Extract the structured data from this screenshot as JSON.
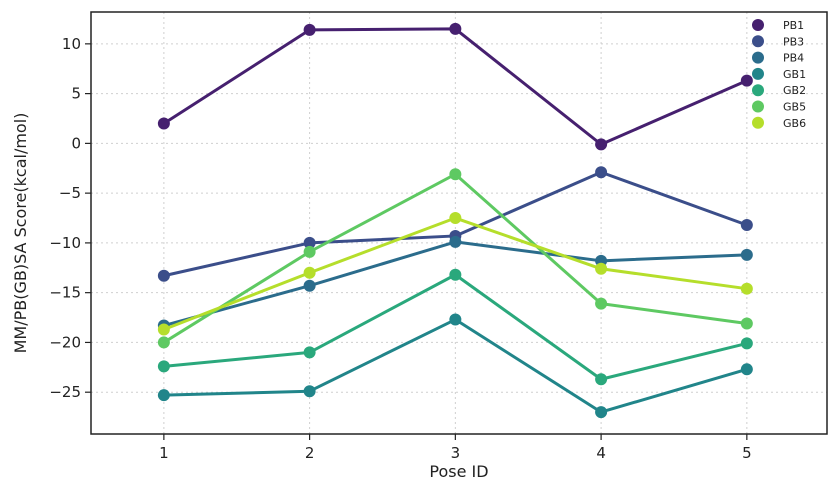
{
  "chart_data": {
    "type": "line",
    "xlabel": "Pose ID",
    "ylabel": "MM/PB(GB)SA Score(kcal/mol)",
    "x": [
      1,
      2,
      3,
      4,
      5
    ],
    "xlim": [
      0.5,
      5.55
    ],
    "ylim": [
      -29.2,
      13.2
    ],
    "yticks": [
      10,
      5,
      0,
      -5,
      -10,
      -15,
      -20,
      -25
    ],
    "ytick_labels": [
      "10",
      "5",
      "0",
      "−5",
      "−10",
      "−15",
      "−20",
      "−25"
    ],
    "xtick_labels": [
      "1",
      "2",
      "3",
      "4",
      "5"
    ],
    "grid": true,
    "legend_position": "top-right",
    "series": [
      {
        "name": "PB1",
        "color": "#46206f",
        "values": [
          2.0,
          11.4,
          11.5,
          -0.1,
          6.3
        ]
      },
      {
        "name": "PB3",
        "color": "#3b4e8a",
        "values": [
          -13.3,
          -10.0,
          -9.3,
          -2.9,
          -8.2
        ]
      },
      {
        "name": "PB4",
        "color": "#2b6c8c",
        "values": [
          -18.3,
          -14.3,
          -9.9,
          -11.8,
          -11.2
        ]
      },
      {
        "name": "GB1",
        "color": "#21858a",
        "values": [
          -25.3,
          -24.9,
          -17.7,
          -27.0,
          -22.7
        ]
      },
      {
        "name": "GB2",
        "color": "#2aa87c",
        "values": [
          -22.4,
          -21.0,
          -13.2,
          -23.7,
          -20.1
        ]
      },
      {
        "name": "GB5",
        "color": "#5ec962",
        "values": [
          -20.0,
          -10.9,
          -3.1,
          -16.1,
          -18.1
        ]
      },
      {
        "name": "GB6",
        "color": "#b5de2b",
        "values": [
          -18.7,
          -13.0,
          -7.5,
          -12.6,
          -14.6
        ]
      }
    ]
  }
}
